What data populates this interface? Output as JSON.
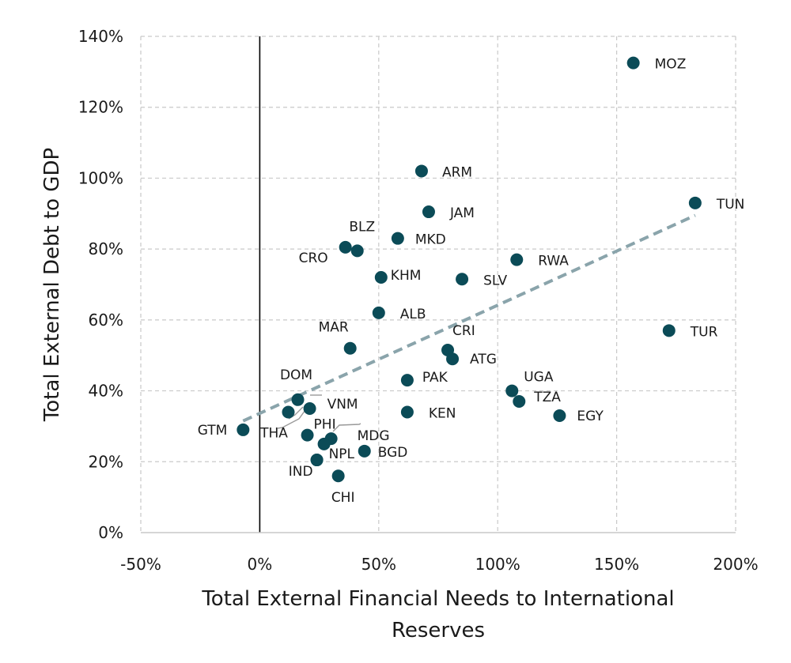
{
  "chart_data": {
    "type": "scatter",
    "xlabel_lines": [
      "Total External Financial Needs to International",
      "Reserves"
    ],
    "ylabel": "Total External Debt to GDP",
    "xlim": [
      -50,
      200
    ],
    "ylim": [
      0,
      140
    ],
    "x_ticks": [
      -50,
      0,
      50,
      100,
      150,
      200
    ],
    "x_tick_labels": [
      "-50%",
      "0%",
      "50%",
      "100%",
      "150%",
      "200%"
    ],
    "y_ticks": [
      0,
      20,
      40,
      60,
      80,
      100,
      120,
      140
    ],
    "y_tick_labels": [
      "0%",
      "20%",
      "40%",
      "60%",
      "80%",
      "100%",
      "120%",
      "140%"
    ],
    "grid": true,
    "colors": {
      "point": "#0b4b57",
      "trend": "#8aa4ab",
      "grid": "#c9c9c9",
      "zero_line": "#000000",
      "leader": "#999999"
    },
    "trendline": {
      "x": [
        -7,
        183
      ],
      "y": [
        31.5,
        89.5
      ]
    },
    "points": [
      {
        "label": "MOZ",
        "x": 157,
        "y": 132.5
      },
      {
        "label": "TUN",
        "x": 183,
        "y": 93
      },
      {
        "label": "ARM",
        "x": 68,
        "y": 102
      },
      {
        "label": "JAM",
        "x": 71,
        "y": 90.5
      },
      {
        "label": "MKD",
        "x": 58,
        "y": 83
      },
      {
        "label": "BLZ",
        "x": 41,
        "y": 79.5
      },
      {
        "label": "CRO",
        "x": 36,
        "y": 80.5
      },
      {
        "label": "RWA",
        "x": 108,
        "y": 77
      },
      {
        "label": "KHM",
        "x": 51,
        "y": 72
      },
      {
        "label": "SLV",
        "x": 85,
        "y": 71.5
      },
      {
        "label": "ALB",
        "x": 50,
        "y": 62
      },
      {
        "label": "TUR",
        "x": 172,
        "y": 57
      },
      {
        "label": "MAR",
        "x": 38,
        "y": 52
      },
      {
        "label": "CRI",
        "x": 79,
        "y": 51.5
      },
      {
        "label": "ATG",
        "x": 81,
        "y": 49
      },
      {
        "label": "PAK",
        "x": 62,
        "y": 43
      },
      {
        "label": "UGA",
        "x": 106,
        "y": 40
      },
      {
        "label": "TZA",
        "x": 109,
        "y": 37
      },
      {
        "label": "DOM",
        "x": 16,
        "y": 37.5
      },
      {
        "label": "VNM",
        "x": 21,
        "y": 35
      },
      {
        "label": "THA",
        "x": 12,
        "y": 34
      },
      {
        "label": "KEN",
        "x": 62,
        "y": 34
      },
      {
        "label": "EGY",
        "x": 126,
        "y": 33
      },
      {
        "label": "GTM",
        "x": -7,
        "y": 29
      },
      {
        "label": "PHI",
        "x": 20,
        "y": 27.5
      },
      {
        "label": "MDG",
        "x": 30,
        "y": 26.5
      },
      {
        "label": "",
        "x": 27,
        "y": 25
      },
      {
        "label": "BGD",
        "x": 44,
        "y": 23
      },
      {
        "label": "NPL",
        "x": 24,
        "y": 20.5
      },
      {
        "label": "IND",
        "x": 24,
        "y": 20.5
      },
      {
        "label": "CHI",
        "x": 33,
        "y": 16
      }
    ]
  }
}
